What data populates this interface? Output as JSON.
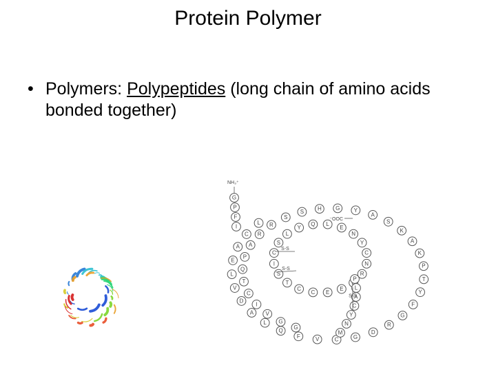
{
  "title": "Protein Polymer",
  "bullet": {
    "prefix": "Polymers: ",
    "keyword": "Polypeptides",
    "suffix": " (long chain of amino acids bonded together)"
  },
  "protein3d": {
    "colors": [
      "#1e4fd6",
      "#2a7cd6",
      "#2dc0d0",
      "#2fd67a",
      "#7fd62f",
      "#d6cc2f",
      "#e8a02a",
      "#e8502a",
      "#d62020"
    ],
    "background": "#ffffff"
  },
  "chain": {
    "terminus_n": "NH₃⁺",
    "terminus_c": "⁻OOC",
    "disulfide_label": "S-S",
    "residues_outer": [
      "G",
      "P",
      "F",
      "I",
      "L",
      "C",
      "A",
      "E",
      "L",
      "V",
      "D",
      "A",
      "L",
      "Q",
      "F",
      "V",
      "C",
      "G",
      "D",
      "R",
      "G",
      "F",
      "Y",
      "T",
      "P",
      "K",
      "A",
      "K",
      "S",
      "A",
      "Y",
      "G",
      "H",
      "S",
      "S",
      "R",
      "R",
      "A",
      "P",
      "Q",
      "T",
      "C",
      "I",
      "V",
      "G",
      "G"
    ],
    "residues_inner_right": [
      "R",
      "D",
      "E",
      "E",
      "C",
      "C",
      "T",
      "S",
      "I",
      "C",
      "S",
      "L",
      "Y",
      "Q",
      "L",
      "E",
      "N",
      "Y",
      "C",
      "N"
    ],
    "residues_inner_tail": [
      "P",
      "L",
      "A",
      "C",
      "Y",
      "N",
      "M"
    ],
    "circle_radius": 6.4,
    "colors": {
      "stroke": "#555555",
      "fill": "#ffffff",
      "text": "#444444"
    }
  }
}
